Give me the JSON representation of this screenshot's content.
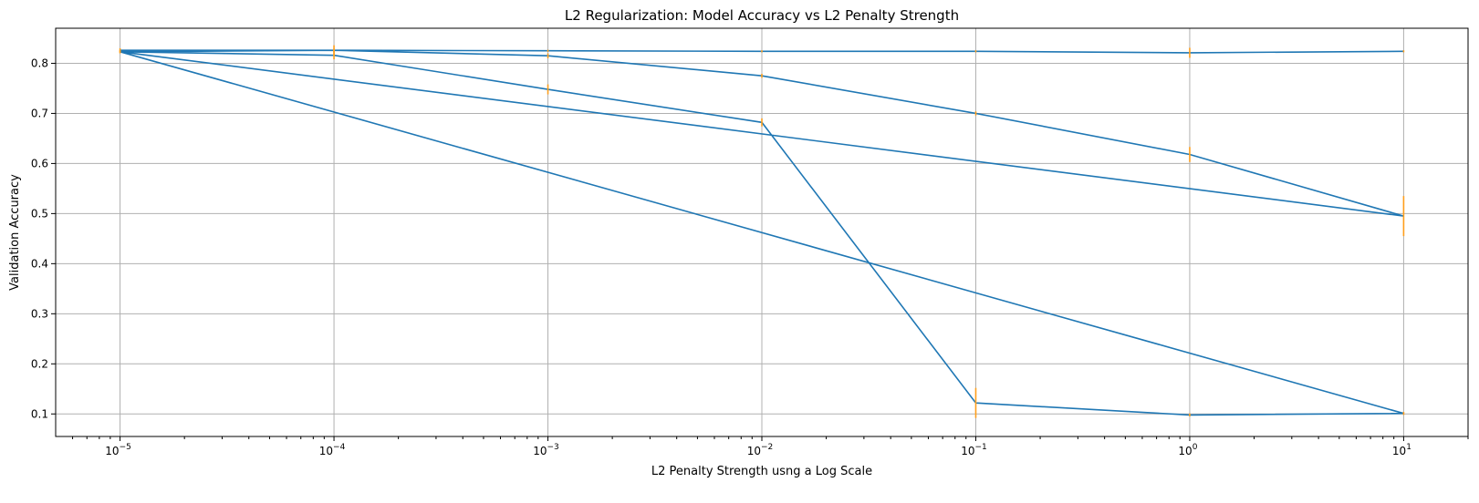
{
  "chart_data": {
    "type": "line",
    "title": "L2 Regularization: Model Accuracy vs L2 Penalty Strength",
    "xlabel": "L2 Penalty Strength usng a Log Scale",
    "ylabel": "Validation Accuracy",
    "xscale": "log",
    "xlim": [
      5e-06,
      20
    ],
    "ylim": [
      0.055,
      0.87
    ],
    "grid": true,
    "line_color": "#1f77b4",
    "errorbar_color": "#ff9f1c",
    "x_ticks": [
      {
        "value": 1e-05,
        "base": "10",
        "exp": "−5"
      },
      {
        "value": 0.0001,
        "base": "10",
        "exp": "−4"
      },
      {
        "value": 0.001,
        "base": "10",
        "exp": "−3"
      },
      {
        "value": 0.01,
        "base": "10",
        "exp": "−2"
      },
      {
        "value": 0.1,
        "base": "10",
        "exp": "−1"
      },
      {
        "value": 1,
        "base": "10",
        "exp": "0"
      },
      {
        "value": 10,
        "base": "10",
        "exp": "1"
      }
    ],
    "y_ticks": [
      0.1,
      0.2,
      0.3,
      0.4,
      0.5,
      0.6,
      0.7,
      0.8
    ],
    "y_tick_labels": [
      "0.1",
      "0.2",
      "0.3",
      "0.4",
      "0.5",
      "0.6",
      "0.7",
      "0.8"
    ],
    "series": [
      {
        "x": [
          1e-05,
          0.0001,
          0.001,
          0.01,
          0.1,
          1,
          10,
          1e-05,
          0.0001,
          0.001,
          0.01,
          0.1,
          1,
          10,
          1e-05,
          0.0001,
          0.001,
          0.01,
          0.1,
          1,
          10
        ],
        "y": [
          0.826,
          0.826,
          0.815,
          0.775,
          0.7,
          0.618,
          0.495,
          0.823,
          0.816,
          0.748,
          0.682,
          0.122,
          0.098,
          0.101,
          0.823,
          0.826,
          0.825,
          0.824,
          0.824,
          0.821,
          0.824
        ],
        "err": [
          0.004,
          0.01,
          0.005,
          0.004,
          0.004,
          0.015,
          0.04,
          0.003,
          0.008,
          0.01,
          0.008,
          0.03,
          0.003,
          0.003,
          0.003,
          0.003,
          0.002,
          0.002,
          0.002,
          0.01,
          0.002
        ]
      }
    ]
  }
}
